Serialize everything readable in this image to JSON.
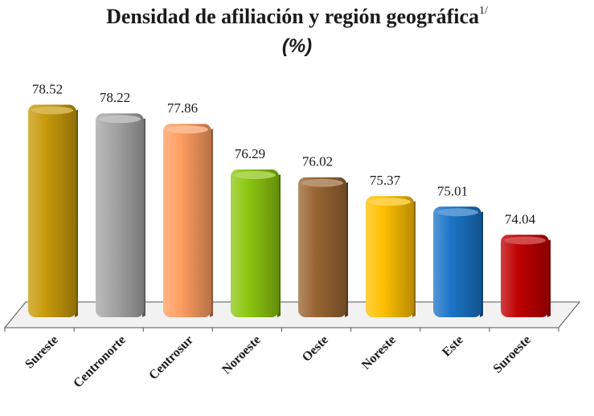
{
  "chart_data": {
    "type": "bar",
    "title": "Densidad de afiliación y región geográfica",
    "title_superscript": "1/",
    "subtitle": "(%)",
    "categories": [
      "Sureste",
      "Centronorte",
      "Centrosur",
      "Noroeste",
      "Oeste",
      "Noreste",
      "Este",
      "Suroeste"
    ],
    "values": [
      78.52,
      78.22,
      77.86,
      76.29,
      76.02,
      75.37,
      75.01,
      74.04
    ],
    "colors": [
      "#C89A0A",
      "#A6A6A6",
      "#FF9E62",
      "#8CC70F",
      "#996633",
      "#FFC000",
      "#1C75C8",
      "#C00000"
    ],
    "xlabel": "",
    "ylabel": "",
    "ylim": [
      71.2,
      79.0
    ],
    "grid": false,
    "legend": "none"
  }
}
